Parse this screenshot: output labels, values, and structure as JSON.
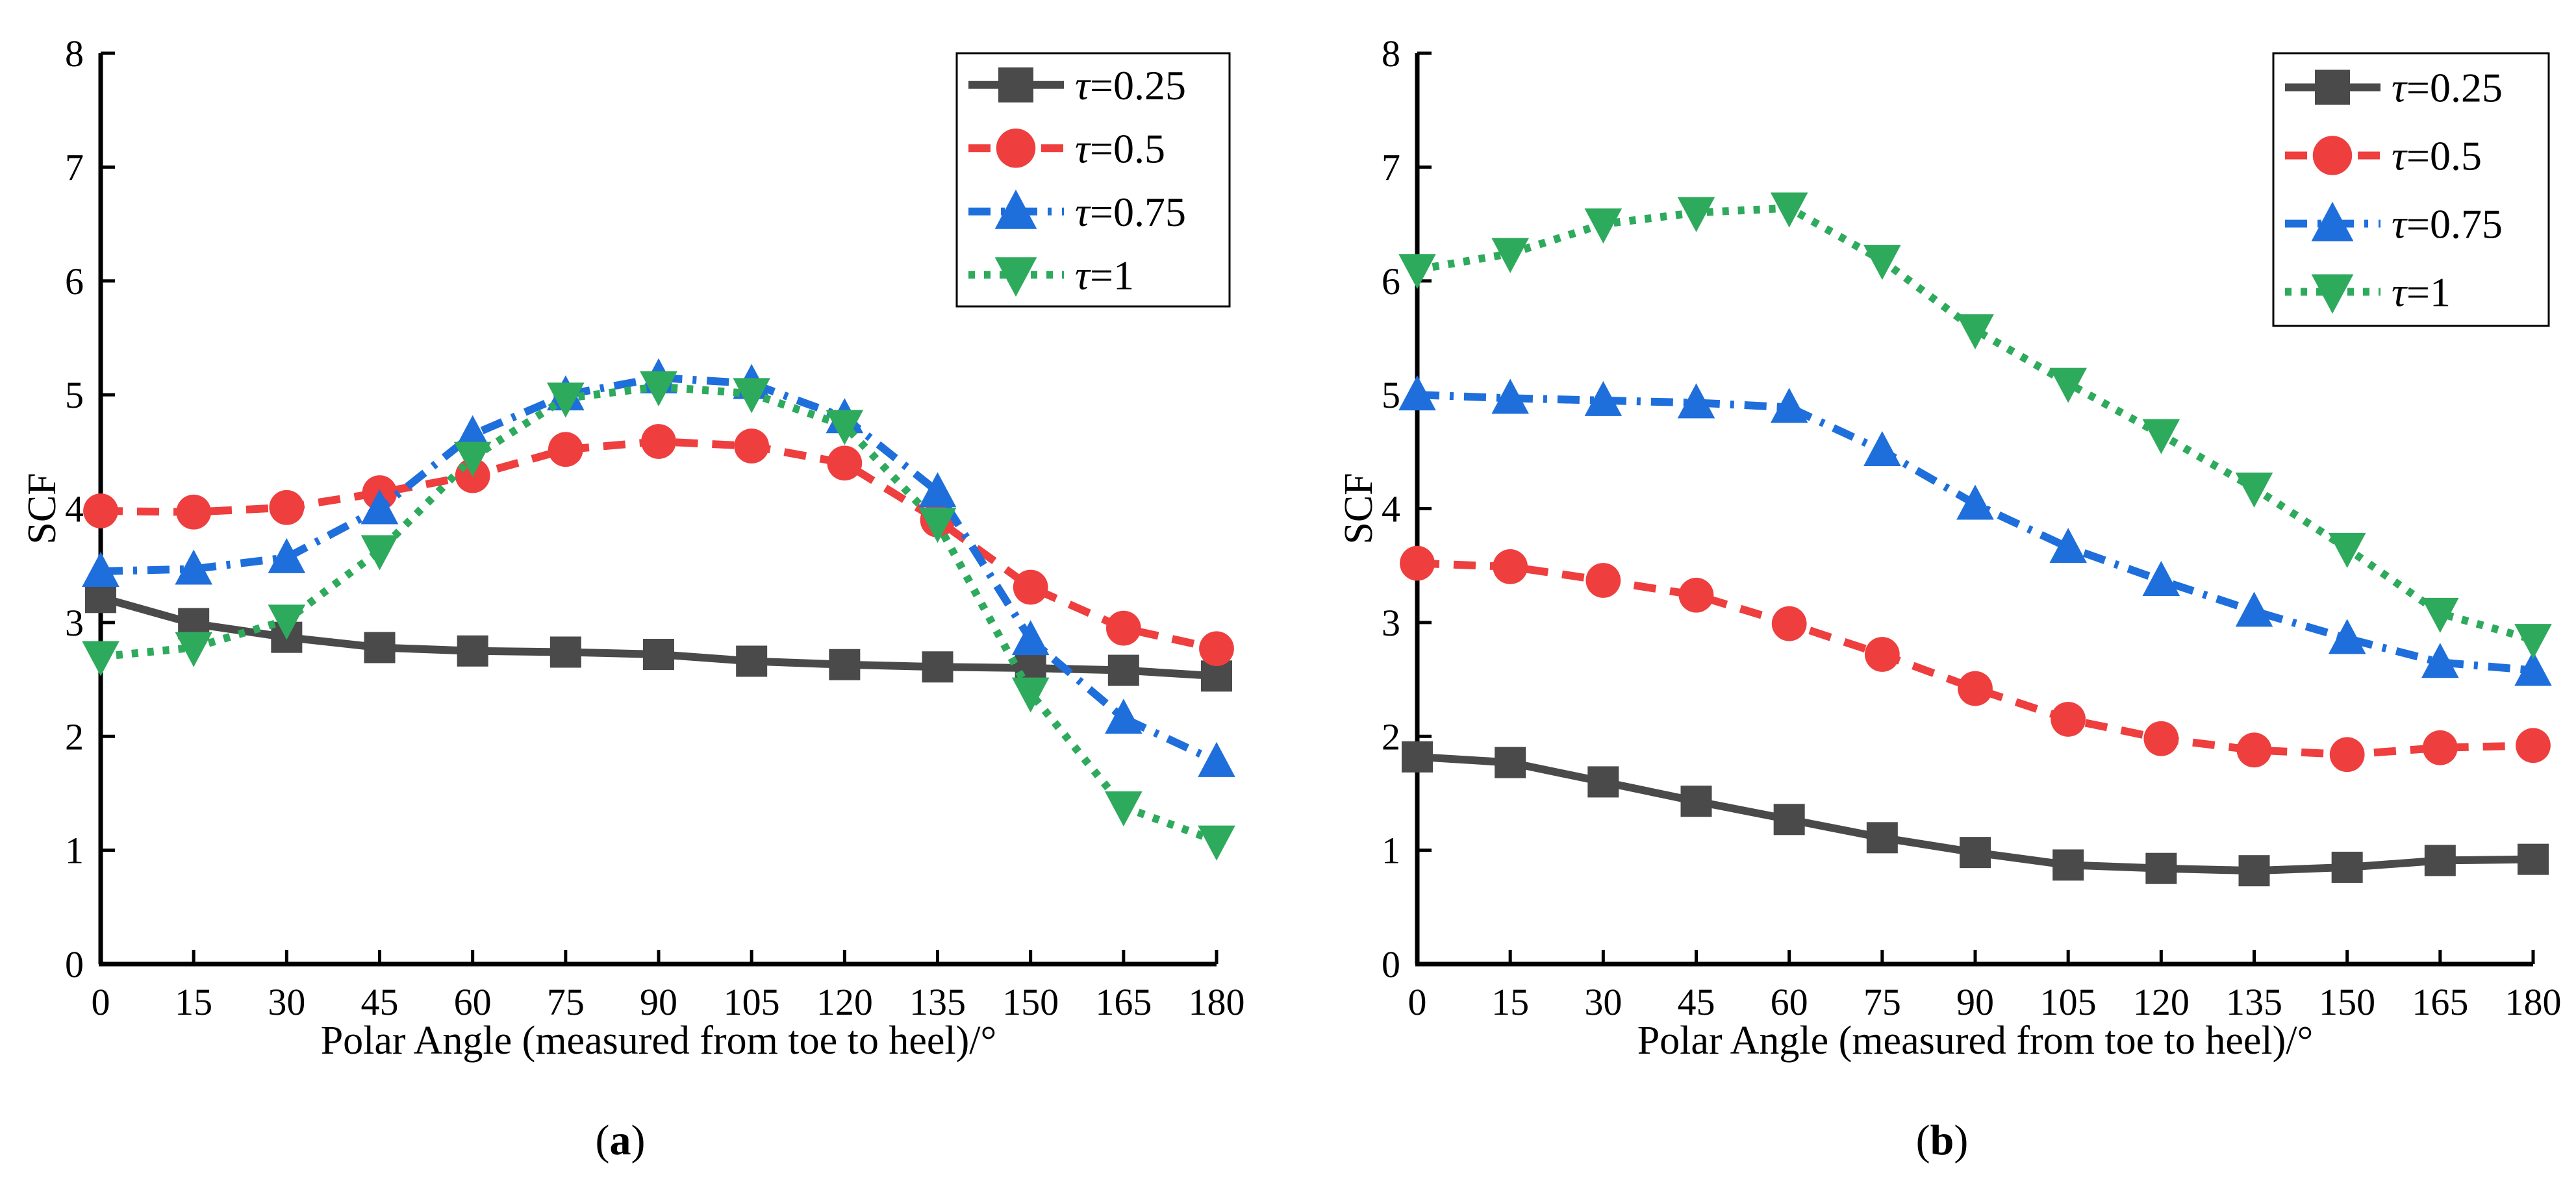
{
  "chart_data": [
    {
      "type": "line",
      "panel_label": "a",
      "title": "",
      "xlabel": "Polar Angle (measured from toe to heel)/°",
      "ylabel": "SCF",
      "x": [
        0,
        15,
        30,
        45,
        60,
        75,
        90,
        105,
        120,
        135,
        150,
        165,
        180
      ],
      "xlim": [
        0,
        180
      ],
      "ylim": [
        0,
        8
      ],
      "xticks": [
        0,
        15,
        30,
        45,
        60,
        75,
        90,
        105,
        120,
        135,
        150,
        165,
        180
      ],
      "yticks": [
        0,
        1,
        2,
        3,
        4,
        5,
        6,
        7,
        8
      ],
      "grid": false,
      "legend_position": "top-right",
      "series": [
        {
          "name": "τ=0.25",
          "color": "#4a4a4a",
          "marker": "square",
          "dash": "solid",
          "values": [
            3.22,
            2.99,
            2.87,
            2.78,
            2.75,
            2.74,
            2.72,
            2.66,
            2.63,
            2.61,
            2.6,
            2.58,
            2.53
          ]
        },
        {
          "name": "τ=0.5",
          "color": "#ee3e3e",
          "marker": "circle",
          "dash": "dash",
          "values": [
            3.98,
            3.97,
            4.01,
            4.14,
            4.29,
            4.52,
            4.59,
            4.55,
            4.4,
            3.9,
            3.31,
            2.95,
            2.77
          ]
        },
        {
          "name": "τ=0.75",
          "color": "#1e6fdc",
          "marker": "triangle-up",
          "dash": "dashdot",
          "values": [
            3.45,
            3.47,
            3.57,
            4.0,
            4.65,
            5.0,
            5.15,
            5.1,
            4.8,
            4.15,
            2.85,
            2.16,
            1.78
          ]
        },
        {
          "name": "τ=1",
          "color": "#2eaa5c",
          "marker": "triangle-down",
          "dash": "dot",
          "values": [
            2.7,
            2.78,
            3.02,
            3.63,
            4.45,
            4.97,
            5.07,
            5.01,
            4.73,
            3.87,
            2.38,
            1.38,
            1.08
          ]
        }
      ]
    },
    {
      "type": "line",
      "panel_label": "b",
      "title": "",
      "xlabel": "Polar Angle (measured from toe to heel)/°",
      "ylabel": "SCF",
      "x": [
        0,
        15,
        30,
        45,
        60,
        75,
        90,
        105,
        120,
        135,
        150,
        165,
        180
      ],
      "xlim": [
        0,
        180
      ],
      "ylim": [
        0,
        8
      ],
      "xticks": [
        0,
        15,
        30,
        45,
        60,
        75,
        90,
        105,
        120,
        135,
        150,
        165,
        180
      ],
      "yticks": [
        0,
        1,
        2,
        3,
        4,
        5,
        6,
        7,
        8
      ],
      "grid": false,
      "legend_position": "top-right",
      "series": [
        {
          "name": "τ=0.25",
          "color": "#4a4a4a",
          "marker": "square",
          "dash": "solid",
          "values": [
            1.82,
            1.77,
            1.6,
            1.43,
            1.27,
            1.11,
            0.98,
            0.87,
            0.84,
            0.82,
            0.85,
            0.91,
            0.92
          ]
        },
        {
          "name": "τ=0.5",
          "color": "#ee3e3e",
          "marker": "circle",
          "dash": "dash",
          "values": [
            3.52,
            3.49,
            3.37,
            3.24,
            2.99,
            2.72,
            2.42,
            2.15,
            1.98,
            1.88,
            1.84,
            1.9,
            1.92
          ]
        },
        {
          "name": "τ=0.75",
          "color": "#1e6fdc",
          "marker": "triangle-up",
          "dash": "dashdot",
          "values": [
            5.0,
            4.97,
            4.95,
            4.93,
            4.89,
            4.51,
            4.04,
            3.66,
            3.37,
            3.1,
            2.86,
            2.65,
            2.58
          ]
        },
        {
          "name": "τ=1",
          "color": "#2eaa5c",
          "marker": "triangle-down",
          "dash": "dot",
          "values": [
            6.1,
            6.24,
            6.5,
            6.6,
            6.64,
            6.18,
            5.57,
            5.1,
            4.65,
            4.18,
            3.65,
            3.08,
            2.85
          ]
        }
      ]
    }
  ]
}
